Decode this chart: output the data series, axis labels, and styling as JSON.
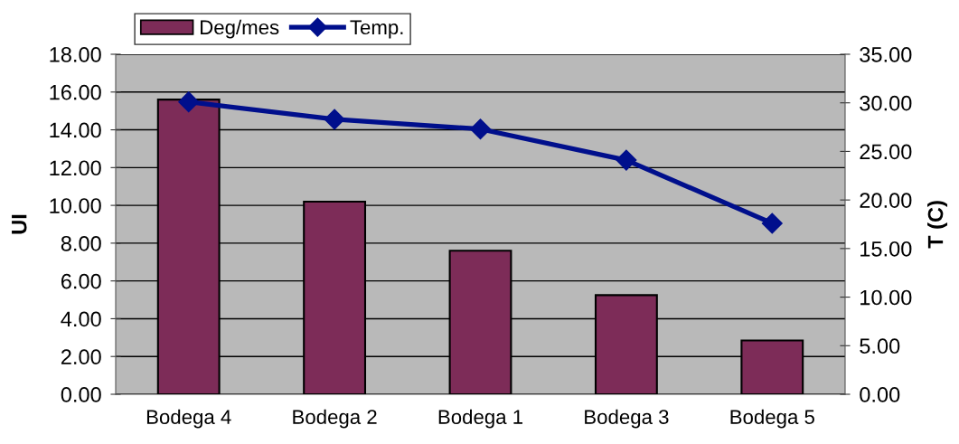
{
  "chart_data": {
    "type": "bar",
    "categories": [
      "Bodega 4",
      "Bodega 2",
      "Bodega 1",
      "Bodega 3",
      "Bodega 5"
    ],
    "series": [
      {
        "name": "Deg/mes",
        "color": "#7d2c58",
        "values": [
          15.6,
          10.2,
          7.6,
          5.25,
          2.85
        ]
      },
      {
        "name": "Temp.",
        "type": "line",
        "axis": "y2",
        "color": "#000f8c",
        "marker": "diamond",
        "line_style": "solid",
        "values": [
          30.1,
          28.3,
          27.3,
          24.1,
          17.6
        ]
      }
    ],
    "ylabel": "UI",
    "y2label": "T (C)",
    "ylim": [
      0,
      18
    ],
    "yticks": [
      {
        "value": 0,
        "label": "0.00"
      },
      {
        "value": 2,
        "label": "2.00"
      },
      {
        "value": 4,
        "label": "4.00"
      },
      {
        "value": 6,
        "label": "6.00"
      },
      {
        "value": 8,
        "label": "8.00"
      },
      {
        "value": 10,
        "label": "10.00"
      },
      {
        "value": 12,
        "label": "12.00"
      },
      {
        "value": 14,
        "label": "14.00"
      },
      {
        "value": 16,
        "label": "16.00"
      },
      {
        "value": 18,
        "label": "18.00"
      }
    ],
    "y2lim": [
      0,
      35
    ],
    "y2ticks": [
      {
        "value": 0,
        "label": "0.00"
      },
      {
        "value": 5,
        "label": "5.00"
      },
      {
        "value": 10,
        "label": "10.00"
      },
      {
        "value": 15,
        "label": "15.00"
      },
      {
        "value": 20,
        "label": "20.00"
      },
      {
        "value": 25,
        "label": "25.00"
      },
      {
        "value": 30,
        "label": "30.00"
      },
      {
        "value": 35,
        "label": "35.00"
      }
    ],
    "grid": "y",
    "legend": "top left"
  }
}
